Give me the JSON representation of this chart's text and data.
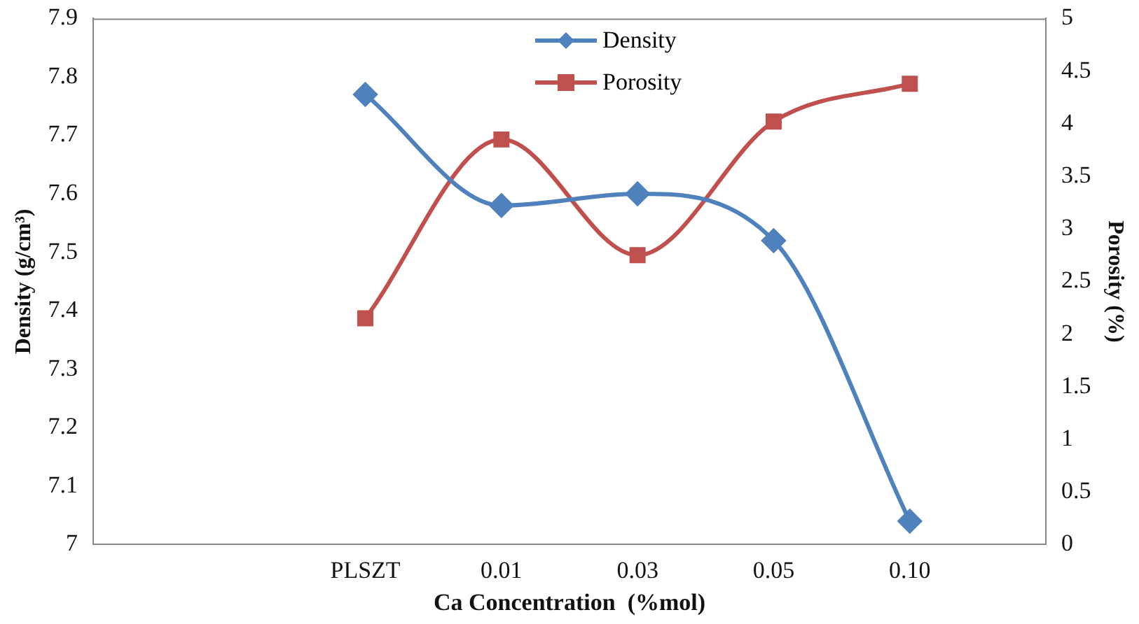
{
  "chart_data": {
    "type": "line",
    "xlabel": "Ca Concentration  (%mol)",
    "ylabel": "Density (g/cm³)",
    "y2label": "Porosity (%)",
    "categories": [
      null,
      null,
      "PLSZT",
      "0.01",
      "0.03",
      "0.05",
      "0.10",
      null
    ],
    "series": [
      {
        "name": "Density",
        "color": "#4f81bd",
        "marker": "diamond",
        "values": [
          null,
          null,
          7.77,
          7.58,
          7.6,
          7.52,
          7.04,
          null
        ]
      },
      {
        "name": "Porosity",
        "color": "#c0504d",
        "marker": "square",
        "axis": "y2",
        "values": [
          null,
          null,
          2.15,
          3.85,
          2.75,
          4.02,
          4.38,
          null
        ]
      }
    ],
    "ylim": [
      7,
      7.9
    ],
    "yticks": [
      7,
      7.1,
      7.2,
      7.3,
      7.4,
      7.5,
      7.6,
      7.7,
      7.8,
      7.9
    ],
    "y2lim": [
      0,
      5
    ],
    "y2ticks": [
      0,
      0.5,
      1,
      1.5,
      2,
      2.5,
      3,
      3.5,
      4,
      4.5,
      5
    ],
    "grid": false,
    "legend": "top"
  }
}
